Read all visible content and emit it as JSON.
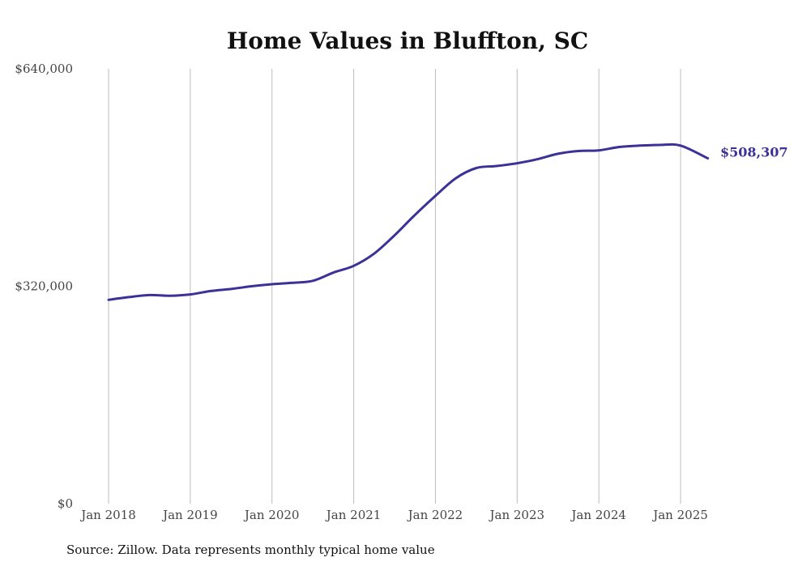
{
  "chart_data": {
    "type": "line",
    "title": "Home Values in Bluffton, SC",
    "xlabel": "",
    "ylabel": "",
    "ylim": [
      0,
      640000
    ],
    "yticks": [
      {
        "value": 0,
        "label": "$0"
      },
      {
        "value": 320000,
        "label": "$320,000"
      },
      {
        "value": 640000,
        "label": "$640,000"
      }
    ],
    "xlim": [
      "2018-01",
      "2025-05"
    ],
    "xticks": [
      {
        "date": "2018-01",
        "label": "Jan 2018"
      },
      {
        "date": "2019-01",
        "label": "Jan 2019"
      },
      {
        "date": "2020-01",
        "label": "Jan 2020"
      },
      {
        "date": "2021-01",
        "label": "Jan 2021"
      },
      {
        "date": "2022-01",
        "label": "Jan 2022"
      },
      {
        "date": "2023-01",
        "label": "Jan 2023"
      },
      {
        "date": "2024-01",
        "label": "Jan 2024"
      },
      {
        "date": "2025-01",
        "label": "Jan 2025"
      }
    ],
    "grid": "vertical",
    "legend": "none",
    "line_color": "#3b3298",
    "end_label": "$508,307",
    "series": [
      {
        "x": [
          "2018-01",
          "2018-04",
          "2018-07",
          "2018-10",
          "2019-01",
          "2019-04",
          "2019-07",
          "2019-10",
          "2020-01",
          "2020-04",
          "2020-07",
          "2020-10",
          "2021-01",
          "2021-04",
          "2021-07",
          "2021-10",
          "2022-01",
          "2022-04",
          "2022-07",
          "2022-10",
          "2023-01",
          "2023-04",
          "2023-07",
          "2023-10",
          "2024-01",
          "2024-04",
          "2024-07",
          "2024-10",
          "2025-01",
          "2025-05"
        ],
        "y": [
          300000,
          304000,
          307000,
          306000,
          308000,
          313000,
          316000,
          320000,
          323000,
          325000,
          328000,
          340000,
          350000,
          368000,
          395000,
          425000,
          453000,
          479000,
          494000,
          497000,
          501000,
          507000,
          515000,
          519000,
          520000,
          525000,
          527000,
          528000,
          527000,
          508307
        ]
      }
    ],
    "source": "Source: Zillow. Data represents monthly typical home value"
  }
}
